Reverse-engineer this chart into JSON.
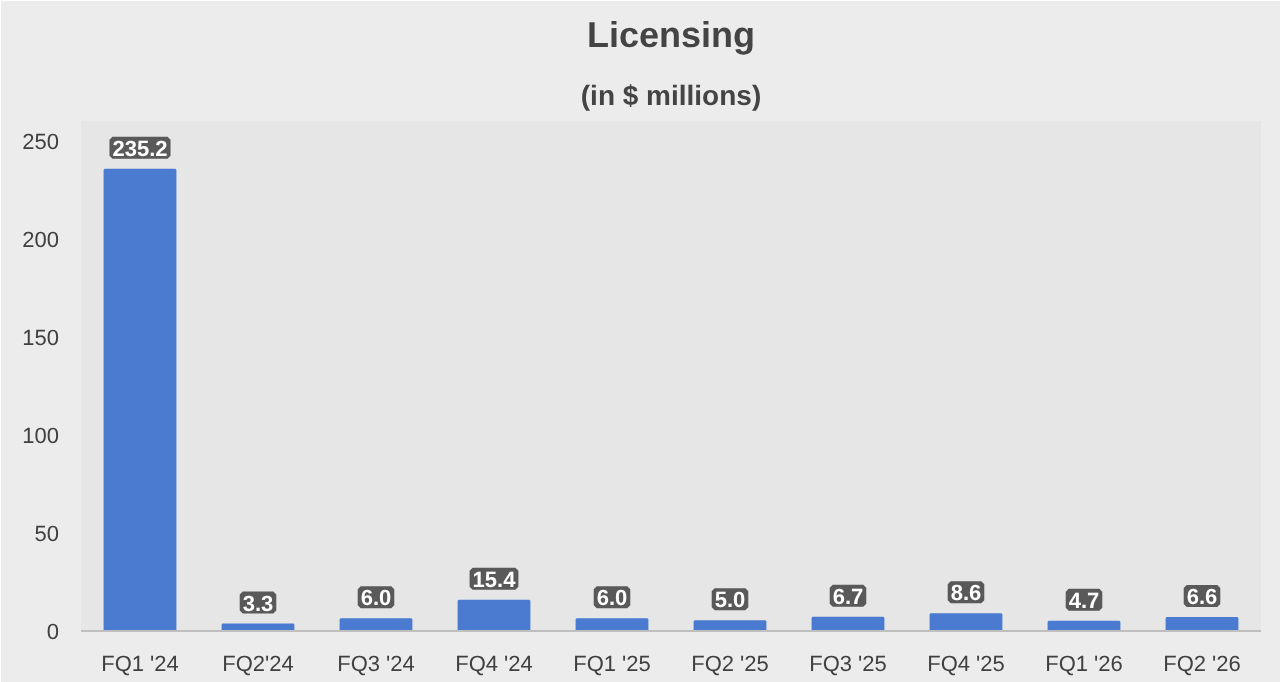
{
  "chart_data": {
    "type": "bar",
    "title": "Licensing",
    "subtitle": "(in $ millions)",
    "categories": [
      "FQ1 '24",
      "FQ2'24",
      "FQ3 '24",
      "FQ4 '24",
      "FQ1 '25",
      "FQ2 '25",
      "FQ3 '25",
      "FQ4 '25",
      "FQ1 '26",
      "FQ2 '26"
    ],
    "values": [
      235.2,
      3.3,
      6.0,
      15.4,
      6.0,
      5.0,
      6.7,
      8.6,
      4.7,
      6.6
    ],
    "value_labels": [
      "235.2",
      "3.3",
      "6.0",
      "15.4",
      "6.0",
      "5.0",
      "6.7",
      "8.6",
      "4.7",
      "6.6"
    ],
    "color": "#4a7bd0",
    "ylim": [
      0,
      260
    ],
    "yticks": [
      0,
      50,
      100,
      150,
      200,
      250
    ]
  }
}
